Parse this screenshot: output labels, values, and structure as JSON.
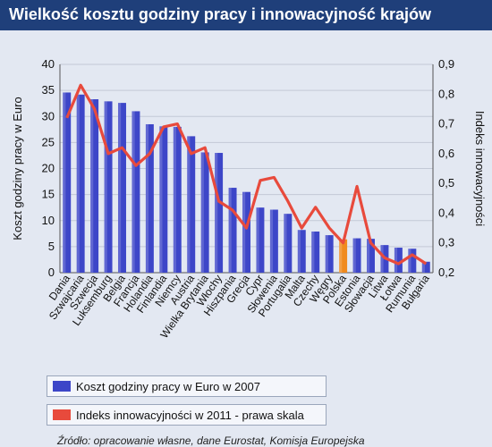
{
  "header": {
    "title": "Wielkość kosztu godziny pracy i innowacyjność krajów"
  },
  "source": "Źródło: opracowanie własne, dane Eurostat, Komisja Europejska",
  "legend": [
    {
      "label": "Koszt godziny pracy w Euro w 2007",
      "color": "#3d46c8"
    },
    {
      "label": "Indeks innowacyjności w 2011 - prawa skala",
      "color": "#e84a3c"
    }
  ],
  "colors": {
    "bar": "#3d46c8",
    "bar_highlight": "#f08a1e",
    "line": "#e84a3c",
    "background": "#e3e8f2",
    "header": "#1f3f7a"
  },
  "chart_data": {
    "type": "bar",
    "title": "Wielkość kosztu godziny pracy i innowacyjność krajów",
    "ylabel": "Koszt godziny pracy w Euro",
    "y2label": "Indeks innowacyjności",
    "ylim": [
      0,
      40
    ],
    "y2lim": [
      0.2,
      0.9
    ],
    "yticks": [
      "0",
      "5",
      "10",
      "15",
      "20",
      "25",
      "30",
      "35",
      "40"
    ],
    "y2ticks": [
      "0,2",
      "0,3",
      "0,4",
      "0,5",
      "0,6",
      "0,7",
      "0,8",
      "0,9"
    ],
    "categories": [
      "Dania",
      "Szwajcaria",
      "Szwecja",
      "Luksemburg",
      "Belgia",
      "Francja",
      "Holandia",
      "Finlandia",
      "Niemcy",
      "Austria",
      "Wielka Brytania",
      "Włochy",
      "Hiszpania",
      "Grecja",
      "Cypr",
      "Słowenia",
      "Portugalia",
      "Malta",
      "Czechy",
      "Węgry",
      "Polska",
      "Estonia",
      "Słowacja",
      "Litwa",
      "Łotwa",
      "Rumunia",
      "Bułgaria"
    ],
    "series": [
      {
        "name": "Koszt godziny pracy w Euro w 2007",
        "type": "bar",
        "axis": "left",
        "values": [
          34.6,
          34.2,
          33.3,
          32.9,
          32.6,
          31.0,
          28.5,
          28.1,
          28.0,
          26.2,
          23.1,
          23.0,
          16.3,
          15.5,
          12.5,
          12.1,
          11.3,
          8.2,
          7.9,
          7.2,
          6.4,
          6.6,
          6.5,
          5.3,
          4.8,
          4.6,
          2.1
        ],
        "highlight_index": 20
      },
      {
        "name": "Indeks innowacyjności w 2011 - prawa skala",
        "type": "line",
        "axis": "right",
        "values": [
          0.72,
          0.83,
          0.75,
          0.6,
          0.62,
          0.56,
          0.6,
          0.69,
          0.7,
          0.6,
          0.62,
          0.44,
          0.41,
          0.35,
          0.51,
          0.52,
          0.44,
          0.35,
          0.42,
          0.35,
          0.3,
          0.49,
          0.3,
          0.25,
          0.23,
          0.26,
          0.23
        ]
      }
    ]
  }
}
